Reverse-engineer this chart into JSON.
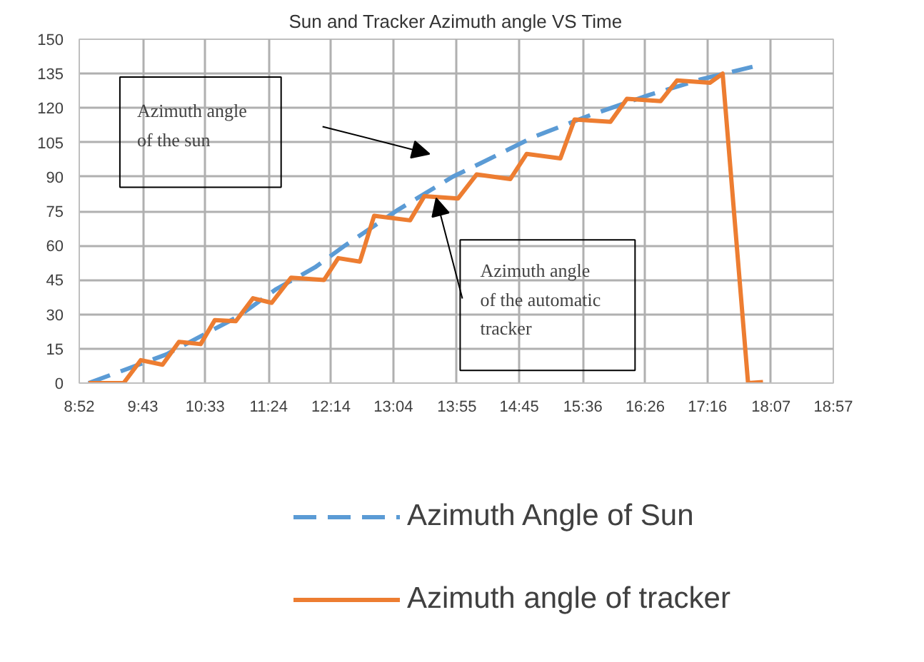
{
  "chart_data": {
    "type": "line",
    "title": "Sun and Tracker Azimuth angle VS Time",
    "xlim": [
      8.8667,
      18.95
    ],
    "xticks": [
      {
        "value": 8.8667,
        "label": "8:52"
      },
      {
        "value": 9.7167,
        "label": "9:43"
      },
      {
        "value": 10.55,
        "label": "10:33"
      },
      {
        "value": 11.4,
        "label": "11:24"
      },
      {
        "value": 12.2333,
        "label": "12:14"
      },
      {
        "value": 13.0667,
        "label": "13:04"
      },
      {
        "value": 13.9167,
        "label": "13:55"
      },
      {
        "value": 14.75,
        "label": "14:45"
      },
      {
        "value": 15.6,
        "label": "15:36"
      },
      {
        "value": 16.4333,
        "label": "16:26"
      },
      {
        "value": 17.2667,
        "label": "17:16"
      },
      {
        "value": 18.1167,
        "label": "18:07"
      },
      {
        "value": 18.95,
        "label": "18:57"
      }
    ],
    "ylim": [
      0,
      150
    ],
    "yticks": [
      0,
      15,
      30,
      45,
      60,
      75,
      90,
      105,
      120,
      135,
      150
    ],
    "grid": true,
    "legend": "bottom",
    "marker": "none",
    "series": [
      {
        "name": "Azimuth Angle of Sun",
        "color": "#5b9bd5",
        "line_style": "dashed",
        "x": [
          8.99,
          9.46,
          10.03,
          10.99,
          11.5,
          12.02,
          12.42,
          13.13,
          13.86,
          14.24,
          14.95,
          15.71,
          16.48,
          17.18,
          17.87
        ],
        "values": [
          0,
          5.6,
          12.5,
          29,
          41,
          50.5,
          60,
          75.6,
          90,
          96,
          107.5,
          117,
          125.6,
          132.5,
          138
        ]
      },
      {
        "name": "Azimuth angle of tracker",
        "color": "#ed7d31",
        "line_style": "solid",
        "x": [
          8.99,
          9.4,
          9.46,
          9.69,
          9.98,
          10.2,
          10.49,
          10.68,
          10.96,
          11.19,
          11.44,
          11.7,
          12.14,
          12.33,
          12.62,
          12.81,
          13.29,
          13.48,
          13.93,
          14.18,
          14.63,
          14.85,
          15.3,
          15.49,
          15.97,
          16.19,
          16.64,
          16.86,
          17.3,
          17.47,
          17.81,
          18.01
        ],
        "values": [
          0,
          0,
          0,
          10,
          8,
          18,
          17,
          27.5,
          27,
          37,
          35,
          46,
          45,
          54.5,
          53,
          73,
          71,
          81.5,
          80.5,
          91,
          89,
          100,
          98,
          115,
          114,
          124,
          123,
          132,
          131,
          135,
          0,
          0.5
        ]
      }
    ],
    "annotations": [
      "Azimuth angle\nof the sun",
      {
        "text": "Azimuth angle\nof the automatic\ntracker",
        "x": 13.64,
        "y": 80.6
      }
    ]
  }
}
